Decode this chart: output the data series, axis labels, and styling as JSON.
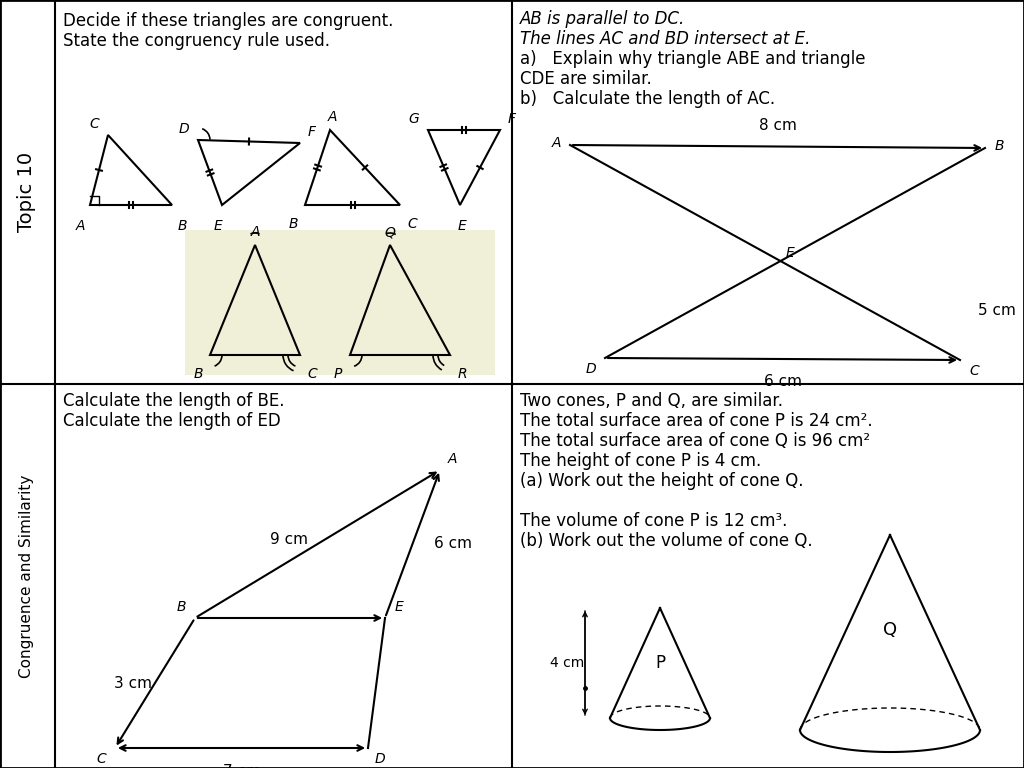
{
  "bg_color": "#ffffff",
  "topic_label": "Topic 10",
  "congruence_label": "Congruence and Similarity",
  "tl_text1": "Decide if these triangles are congruent.",
  "tl_text2": "State the congruency rule used.",
  "tr_text": [
    [
      "AB",
      " is parallel to ",
      "DC",
      "."
    ],
    [
      "The lines ",
      "AC",
      " and ",
      "BD",
      " intersect at ",
      "E",
      "."
    ],
    [
      "a)   Explain why triangle ",
      "ABE",
      " and triangle"
    ],
    [
      "CDE",
      " are similar."
    ],
    [
      "b)   Calculate the length of ",
      "AC",
      "."
    ]
  ],
  "bl_text1": "Calculate the length of BE.",
  "bl_text2": "Calculate the length of ED",
  "br_text": [
    "Two cones, P and Q, are similar.",
    "The total surface area of cone P is 24 cm².",
    "The total surface area of cone Q is 96 cm²",
    "The height of cone P is 4 cm.",
    "(a) Work out the height of cone Q.",
    "",
    "The volume of cone P is 12 cm³.",
    "(b) Work out the volume of cone Q."
  ]
}
